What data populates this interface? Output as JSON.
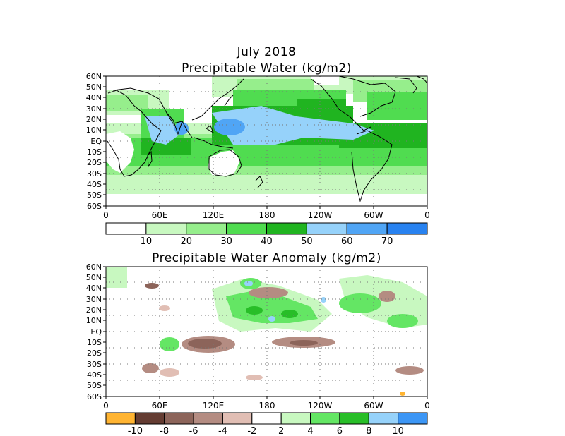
{
  "titles": {
    "month": "July 2018",
    "top": "Precipitable Water (kg/m2)",
    "bottom": "Precipitable Water Anomaly (kg/m2)"
  },
  "axes": {
    "lat_labels": [
      "60N",
      "50N",
      "40N",
      "30N",
      "20N",
      "10N",
      "EQ",
      "10S",
      "20S",
      "30S",
      "40S",
      "50S",
      "60S"
    ],
    "lon_labels": [
      "0",
      "60E",
      "120E",
      "180",
      "120W",
      "60W",
      "0"
    ]
  },
  "legend_top": {
    "colors": [
      "#ffffff",
      "#c8f8c0",
      "#96ee8c",
      "#50dc50",
      "#20b420",
      "#96d2fa",
      "#50a5f5",
      "#2882f0"
    ],
    "labels": [
      "10",
      "20",
      "30",
      "40",
      "50",
      "60",
      "70"
    ]
  },
  "legend_bottom": {
    "colors": [
      "#ffb432",
      "#643c32",
      "#8c645a",
      "#b48c82",
      "#e1beb4",
      "#ffffff",
      "#c8f8c0",
      "#64e664",
      "#28be28",
      "#96d2fa",
      "#3c96f5"
    ],
    "labels": [
      "-10",
      "-8",
      "-6",
      "-4",
      "-2",
      "2",
      "4",
      "6",
      "8",
      "10"
    ]
  }
}
